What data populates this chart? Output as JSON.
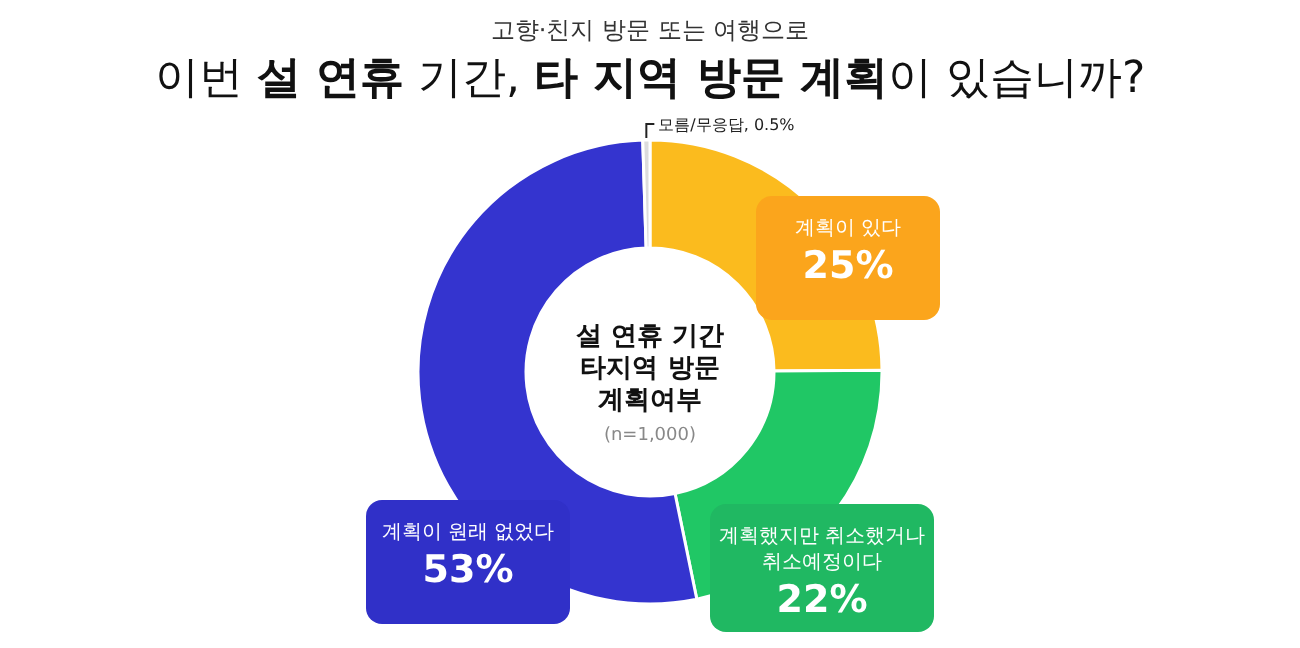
{
  "chart_data": {
    "type": "donut",
    "title": "이번 **설 연휴** 기간, **타 지역 방문 계획**이 있습니까?",
    "subtitle": "고향·친지 방문 또는 여행으로",
    "categories": [
      "계획이 있다",
      "계획했지만 취소했거나 취소예정이다",
      "계획이 원래 없었다",
      "모름/무응답"
    ],
    "values": [
      25,
      22,
      53,
      0.5
    ],
    "colors": [
      "#fbbb1e",
      "#20c765",
      "#3434cf",
      "#dcdcdc"
    ],
    "value_labels": [
      "25%",
      "22%",
      "53%",
      "0.5%"
    ],
    "annotations": [
      "설 연휴 기간 타지역 방문 계획여부",
      "(n=1,000)"
    ]
  }
}
